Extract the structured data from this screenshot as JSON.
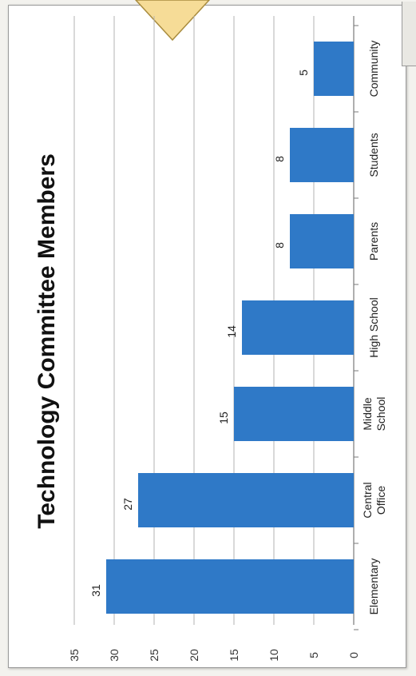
{
  "chart_data": {
    "type": "bar",
    "orientation": "vertical-rotated",
    "title": "Technology Committee Members",
    "categories": [
      "Elementary",
      "Central Office",
      "Middle School",
      "High School",
      "Parents",
      "Students",
      "Community"
    ],
    "category_lines": [
      [
        "Elementary"
      ],
      [
        "Central",
        "Office"
      ],
      [
        "Middle",
        "School"
      ],
      [
        "High School"
      ],
      [
        "Parents"
      ],
      [
        "Students"
      ],
      [
        "Community"
      ]
    ],
    "values": [
      31,
      27,
      15,
      14,
      8,
      8,
      5
    ],
    "data_labels": [
      "31",
      "27",
      "15",
      "14",
      "8",
      "8",
      "5"
    ],
    "yticks": [
      "0",
      "5",
      "10",
      "15",
      "20",
      "25",
      "30",
      "35"
    ],
    "ylim": [
      0,
      35
    ],
    "grid": true,
    "legend": "none",
    "bar_color": "#2f79c7"
  }
}
